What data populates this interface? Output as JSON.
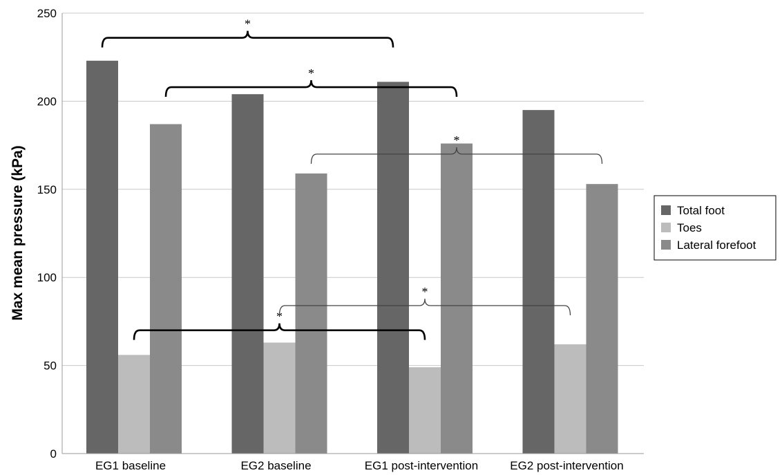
{
  "chart_data": {
    "type": "bar",
    "categories": [
      "EG1 baseline",
      "EG2 baseline",
      "EG1 post-intervention",
      "EG2 post-intervention"
    ],
    "series": [
      {
        "name": "Total foot",
        "color": "#666666",
        "values": [
          223,
          204,
          211,
          195
        ]
      },
      {
        "name": "Toes",
        "color": "#bcbcbc",
        "values": [
          56,
          63,
          49,
          62
        ]
      },
      {
        "name": "Lateral forefoot",
        "color": "#8a8a8a",
        "values": [
          187,
          159,
          176,
          153
        ]
      }
    ],
    "xlabel": "",
    "ylabel": "Max mean pressure (kPa)",
    "ylim": [
      0,
      250
    ],
    "yticks": [
      "0",
      "50",
      "100",
      "150",
      "200",
      "250"
    ],
    "grid": true,
    "legend_position": "right",
    "annotations": [
      {
        "label": "*",
        "from": {
          "category": 0,
          "series": 0
        },
        "to": {
          "category": 2,
          "series": 0
        },
        "height": 236,
        "style": "bold"
      },
      {
        "label": "*",
        "from": {
          "category": 0,
          "series": 2
        },
        "to": {
          "category": 2,
          "series": 2
        },
        "height": 208,
        "style": "bold"
      },
      {
        "label": "*",
        "from": {
          "category": 1,
          "series": 2
        },
        "to": {
          "category": 3,
          "series": 2
        },
        "height": 170,
        "style": "thin"
      },
      {
        "label": "*",
        "from": {
          "category": 0,
          "series": 1
        },
        "to": {
          "category": 2,
          "series": 1
        },
        "height": 70,
        "style": "bold"
      },
      {
        "label": "*",
        "from": {
          "category": 1,
          "series": 1
        },
        "to": {
          "category": 3,
          "series": 1
        },
        "height": 84,
        "style": "thin"
      }
    ]
  }
}
